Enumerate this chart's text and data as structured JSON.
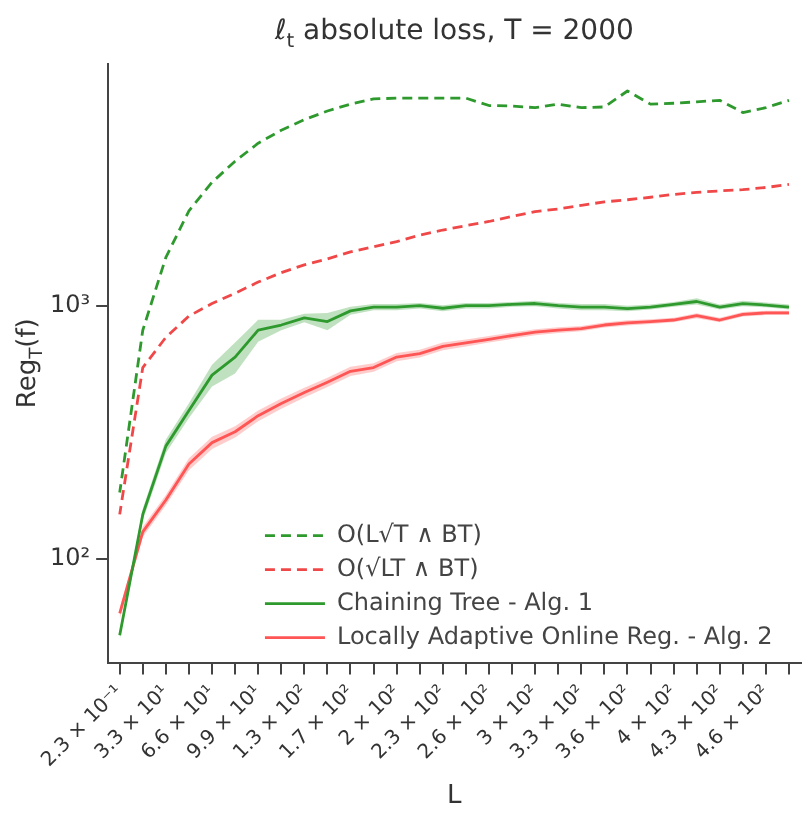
{
  "chart_data": {
    "type": "line",
    "title": "ℓ$_{t}$ absolute loss, T = 2000",
    "xlabel": "L",
    "ylabel": "Reg$_{T}$(f)",
    "categories": [
      "2.3 × 10⁻¹",
      null,
      "3.3 × 10¹",
      null,
      "6.6 × 10¹",
      null,
      "9.9 × 10¹",
      null,
      "1.3 × 10²",
      null,
      "1.7 × 10²",
      null,
      "2 × 10²",
      null,
      "2.3 × 10²",
      null,
      "2.6 × 10²",
      null,
      "3 × 10²",
      null,
      "3.3 × 10²",
      null,
      "3.6 × 10²",
      null,
      "4 × 10²",
      null,
      "4.3 × 10²",
      null,
      "4.6 × 10²",
      null
    ],
    "log": "y",
    "ylim": [
      39,
      9000
    ],
    "yticks": [
      {
        "value": 100,
        "label": "10²"
      },
      {
        "value": 1000,
        "label": "10³"
      }
    ],
    "legend": "bottom right",
    "grid": false,
    "series": [
      {
        "name": "O(L√T ∧ BT)",
        "color": "#2e9a2e",
        "line_style": "dashed",
        "values": [
          183,
          800,
          1550,
          2370,
          3070,
          3720,
          4380,
          4930,
          5430,
          5870,
          6250,
          6550,
          6600,
          6600,
          6600,
          6600,
          6170,
          6140,
          6050,
          6250,
          6050,
          6090,
          7040,
          6250,
          6300,
          6380,
          6470,
          5790,
          6050,
          6470
        ]
      },
      {
        "name": "O(√LT ∧ BT)",
        "color": "#f04848",
        "line_style": "dashed",
        "values": [
          150,
          570,
          750,
          910,
          1020,
          1120,
          1240,
          1350,
          1450,
          1530,
          1630,
          1710,
          1790,
          1900,
          1990,
          2070,
          2150,
          2250,
          2350,
          2410,
          2490,
          2570,
          2620,
          2680,
          2750,
          2800,
          2840,
          2870,
          2930,
          3010
        ]
      },
      {
        "name": "Chaining Tree - Alg. 1",
        "color": "#2e9a2e",
        "line_style": "solid",
        "values": [
          50,
          150,
          279,
          386,
          532,
          627,
          801,
          839,
          895,
          866,
          954,
          987,
          987,
          1000,
          977,
          1000,
          1000,
          1013,
          1020,
          1000,
          987,
          987,
          973,
          987,
          1012,
          1039,
          987,
          1020,
          1006,
          987
        ],
        "lower": [
          48,
          142,
          262,
          360,
          480,
          540,
          720,
          800,
          860,
          800,
          920,
          960,
          960,
          975,
          950,
          975,
          975,
          990,
          995,
          975,
          960,
          960,
          950,
          965,
          990,
          1010,
          965,
          995,
          985,
          965
        ],
        "upper": [
          52,
          158,
          296,
          412,
          585,
          715,
          880,
          880,
          930,
          935,
          990,
          1015,
          1015,
          1025,
          1005,
          1025,
          1025,
          1035,
          1045,
          1025,
          1015,
          1015,
          1000,
          1010,
          1035,
          1070,
          1010,
          1045,
          1030,
          1010
        ]
      },
      {
        "name": "Locally Adaptive Online Reg. - Alg. 2",
        "color": "#ff5555",
        "line_style": "solid",
        "values": [
          61,
          128,
          171,
          237,
          288,
          318,
          368,
          411,
          454,
          499,
          551,
          570,
          627,
          647,
          691,
          713,
          737,
          762,
          786,
          801,
          812,
          839,
          856,
          866,
          878,
          913,
          878,
          925,
          937,
          937
        ],
        "lower": [
          58,
          122,
          163,
          224,
          272,
          302,
          350,
          392,
          434,
          478,
          528,
          548,
          603,
          624,
          667,
          690,
          715,
          740,
          765,
          780,
          792,
          820,
          836,
          847,
          860,
          893,
          860,
          906,
          918,
          918
        ],
        "upper": [
          64,
          134,
          179,
          250,
          304,
          334,
          386,
          430,
          474,
          520,
          574,
          592,
          651,
          670,
          715,
          736,
          759,
          784,
          807,
          822,
          832,
          858,
          876,
          885,
          896,
          933,
          896,
          944,
          956,
          956
        ]
      }
    ]
  }
}
